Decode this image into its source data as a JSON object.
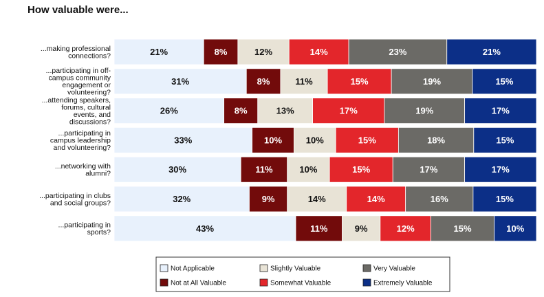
{
  "chart_data": {
    "type": "bar",
    "orientation": "horizontal",
    "stacked": true,
    "title": "How valuable were...",
    "xlabel": "",
    "ylabel": "",
    "xlim": [
      0,
      100
    ],
    "grid": false,
    "legend_position": "bottom",
    "categories": [
      [
        "...making professional",
        "connections?"
      ],
      [
        "...participating in off-",
        "campus community",
        "engagement or",
        "volunteering?"
      ],
      [
        "...attending speakers,",
        "forums, cultural",
        "events, and",
        "discussions?"
      ],
      [
        "...participating in",
        "campus leadership",
        "and volunteering?"
      ],
      [
        "...networking with",
        "alumni?"
      ],
      [
        "...participating in clubs",
        "and social groups?"
      ],
      [
        "...participating in",
        "sports?"
      ]
    ],
    "series": [
      {
        "name": "Not Applicable",
        "color": "#e8f1fc",
        "label_color": "#111111",
        "values": [
          21,
          31,
          26,
          33,
          30,
          32,
          43
        ]
      },
      {
        "name": "Not at All Valuable",
        "color": "#720b0b",
        "label_color": "#ffffff",
        "values": [
          8,
          8,
          8,
          10,
          11,
          9,
          11
        ]
      },
      {
        "name": "Slightly Valuable",
        "color": "#e8e3d6",
        "label_color": "#111111",
        "values": [
          12,
          11,
          13,
          10,
          10,
          14,
          9
        ]
      },
      {
        "name": "Somewhat Valuable",
        "color": "#e3262b",
        "label_color": "#ffffff",
        "values": [
          14,
          15,
          17,
          15,
          15,
          14,
          12
        ]
      },
      {
        "name": "Very Valuable",
        "color": "#6b6a66",
        "label_color": "#ffffff",
        "values": [
          23,
          19,
          19,
          18,
          17,
          16,
          15
        ]
      },
      {
        "name": "Extremely Valuable",
        "color": "#0c2f87",
        "label_color": "#ffffff",
        "values": [
          21,
          15,
          17,
          15,
          17,
          15,
          10
        ]
      }
    ],
    "legend_order": [
      "Not Applicable",
      "Slightly Valuable",
      "Very Valuable",
      "Not at All Valuable",
      "Somewhat Valuable",
      "Extremely Valuable"
    ]
  }
}
